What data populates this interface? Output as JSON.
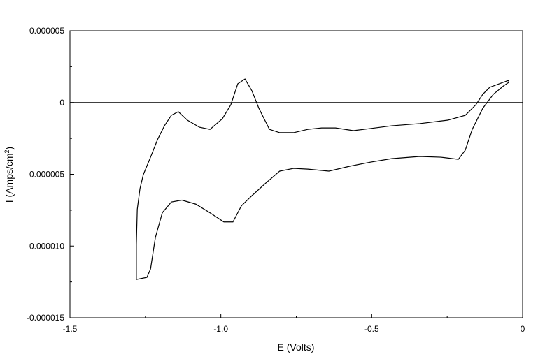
{
  "chart_data": {
    "type": "line",
    "xlabel": "E (Volts)",
    "ylabel": {
      "text": "I (Amps/cm",
      "sup": "2",
      "end": ")"
    },
    "xlim": [
      -1.5,
      0
    ],
    "ylim": [
      -1.5e-05,
      5e-06
    ],
    "xticks": [
      {
        "value": -1.5,
        "label": "-1.5"
      },
      {
        "value": -1.0,
        "label": "-1.0"
      },
      {
        "value": -0.5,
        "label": "-0.5"
      },
      0
    ],
    "xminorticks": [
      -1.25,
      -0.75,
      -0.25
    ],
    "yticks": [
      5e-06,
      0,
      -5e-06,
      {
        "value": -1e-05,
        "label": "-0.000010"
      },
      {
        "value": -1.5e-05,
        "label": "-0.000015"
      }
    ],
    "yminorticks": [
      2.5e-06,
      -2.5e-06,
      -7.5e-06,
      -1.25e-05
    ],
    "hline": 0,
    "grid": false,
    "series": [
      {
        "color": "#000000",
        "x": [
          -0.046,
          -0.109,
          -0.132,
          -0.155,
          -0.19,
          -0.248,
          -0.341,
          -0.434,
          -0.526,
          -0.561,
          -0.62,
          -0.666,
          -0.712,
          -0.759,
          -0.805,
          -0.839,
          -0.874,
          -0.897,
          -0.92,
          -0.944,
          -0.967,
          -0.995,
          -1.036,
          -1.071,
          -1.111,
          -1.141,
          -1.164,
          -1.187,
          -1.21,
          -1.233,
          -1.257,
          -1.268,
          -1.277,
          -1.28,
          -1.28,
          -1.245,
          -1.233,
          -1.217,
          -1.194,
          -1.164,
          -1.129,
          -1.083,
          -1.036,
          -0.99,
          -0.96,
          -0.932,
          -0.897,
          -0.851,
          -0.805,
          -0.759,
          -0.712,
          -0.642,
          -0.573,
          -0.503,
          -0.434,
          -0.341,
          -0.271,
          -0.213,
          -0.19,
          -0.167,
          -0.132,
          -0.097,
          -0.063,
          -0.046,
          -0.046
        ],
        "values": [
          1.55e-06,
          1.06e-06,
          5.7e-07,
          -1.6e-07,
          -8.9e-07,
          -1.23e-06,
          -1.47e-06,
          -1.62e-06,
          -1.87e-06,
          -1.96e-06,
          -1.77e-06,
          -1.77e-06,
          -1.87e-06,
          -2.1e-06,
          -2.1e-06,
          -1.87e-06,
          -4e-07,
          8.1e-07,
          1.64e-06,
          1.3e-06,
          -1.6e-07,
          -1.13e-06,
          -1.87e-06,
          -1.72e-06,
          -1.23e-06,
          -6.4e-07,
          -8.9e-07,
          -1.62e-06,
          -2.59e-06,
          -3.81e-06,
          -5.03e-06,
          -6e-06,
          -7.44e-06,
          -9.89e-06,
          -1.233e-05,
          -1.218e-05,
          -1.16e-05,
          -9.41e-06,
          -7.68e-06,
          -6.93e-06,
          -6.8e-06,
          -7.08e-06,
          -7.68e-06,
          -8.32e-06,
          -8.32e-06,
          -7.2e-06,
          -6.49e-06,
          -5.61e-06,
          -4.78e-06,
          -4.59e-06,
          -4.64e-06,
          -4.78e-06,
          -4.44e-06,
          -4.15e-06,
          -3.91e-06,
          -3.76e-06,
          -3.81e-06,
          -3.96e-06,
          -3.32e-06,
          -1.87e-06,
          -4e-07,
          5.7e-07,
          1.16e-06,
          1.4e-06,
          1.55e-06
        ]
      }
    ]
  }
}
